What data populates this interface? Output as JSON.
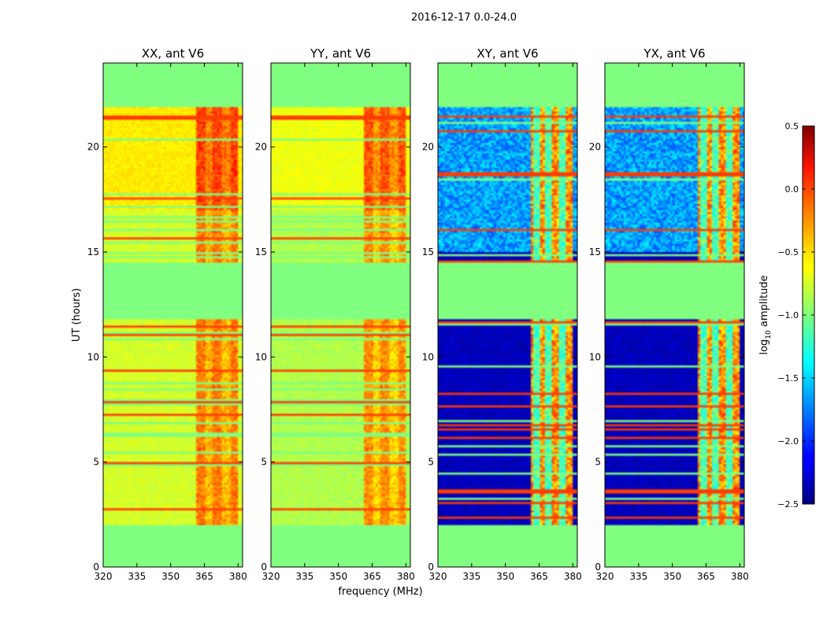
{
  "chart_data": {
    "type": "heatmap",
    "suptitle": "2016-12-17 0.0-24.0",
    "xlabel": "frequency (MHz)",
    "ylabel": "UT (hours)",
    "xlim": [
      320,
      382
    ],
    "ylim": [
      0,
      24
    ],
    "xticks": [
      "320",
      "335",
      "350",
      "365",
      "380"
    ],
    "yticks": [
      "0",
      "5",
      "10",
      "15",
      "20"
    ],
    "panels": [
      {
        "title": "XX, ant V6",
        "kind": "parallel",
        "base": -0.75,
        "band_boost": 0.5
      },
      {
        "title": "YY, ant V6",
        "kind": "parallel",
        "base": -0.85,
        "band_boost": 0.55
      },
      {
        "title": "XY, ant V6",
        "kind": "cross",
        "base": -2.4,
        "band_boost": 1.6
      },
      {
        "title": "YX, ant V6",
        "kind": "cross",
        "base": -2.4,
        "band_boost": 1.6
      }
    ],
    "flagged_time_ranges": [
      [
        0,
        2.0
      ],
      [
        11.8,
        14.5
      ],
      [
        21.9,
        24
      ]
    ],
    "flag_value": -1.0,
    "rfi_band_MHz": [
      361,
      380
    ],
    "colorbar": {
      "label": "log10 amplitude",
      "label_main": "log",
      "label_sub": "10",
      "label_rest": " amplitude",
      "range": [
        -2.5,
        0.5
      ],
      "ticks": [
        "0.5",
        "0.0",
        "−0.5",
        "−1.0",
        "−1.5",
        "−2.0",
        "−2.5"
      ],
      "colormap": "jet"
    }
  }
}
